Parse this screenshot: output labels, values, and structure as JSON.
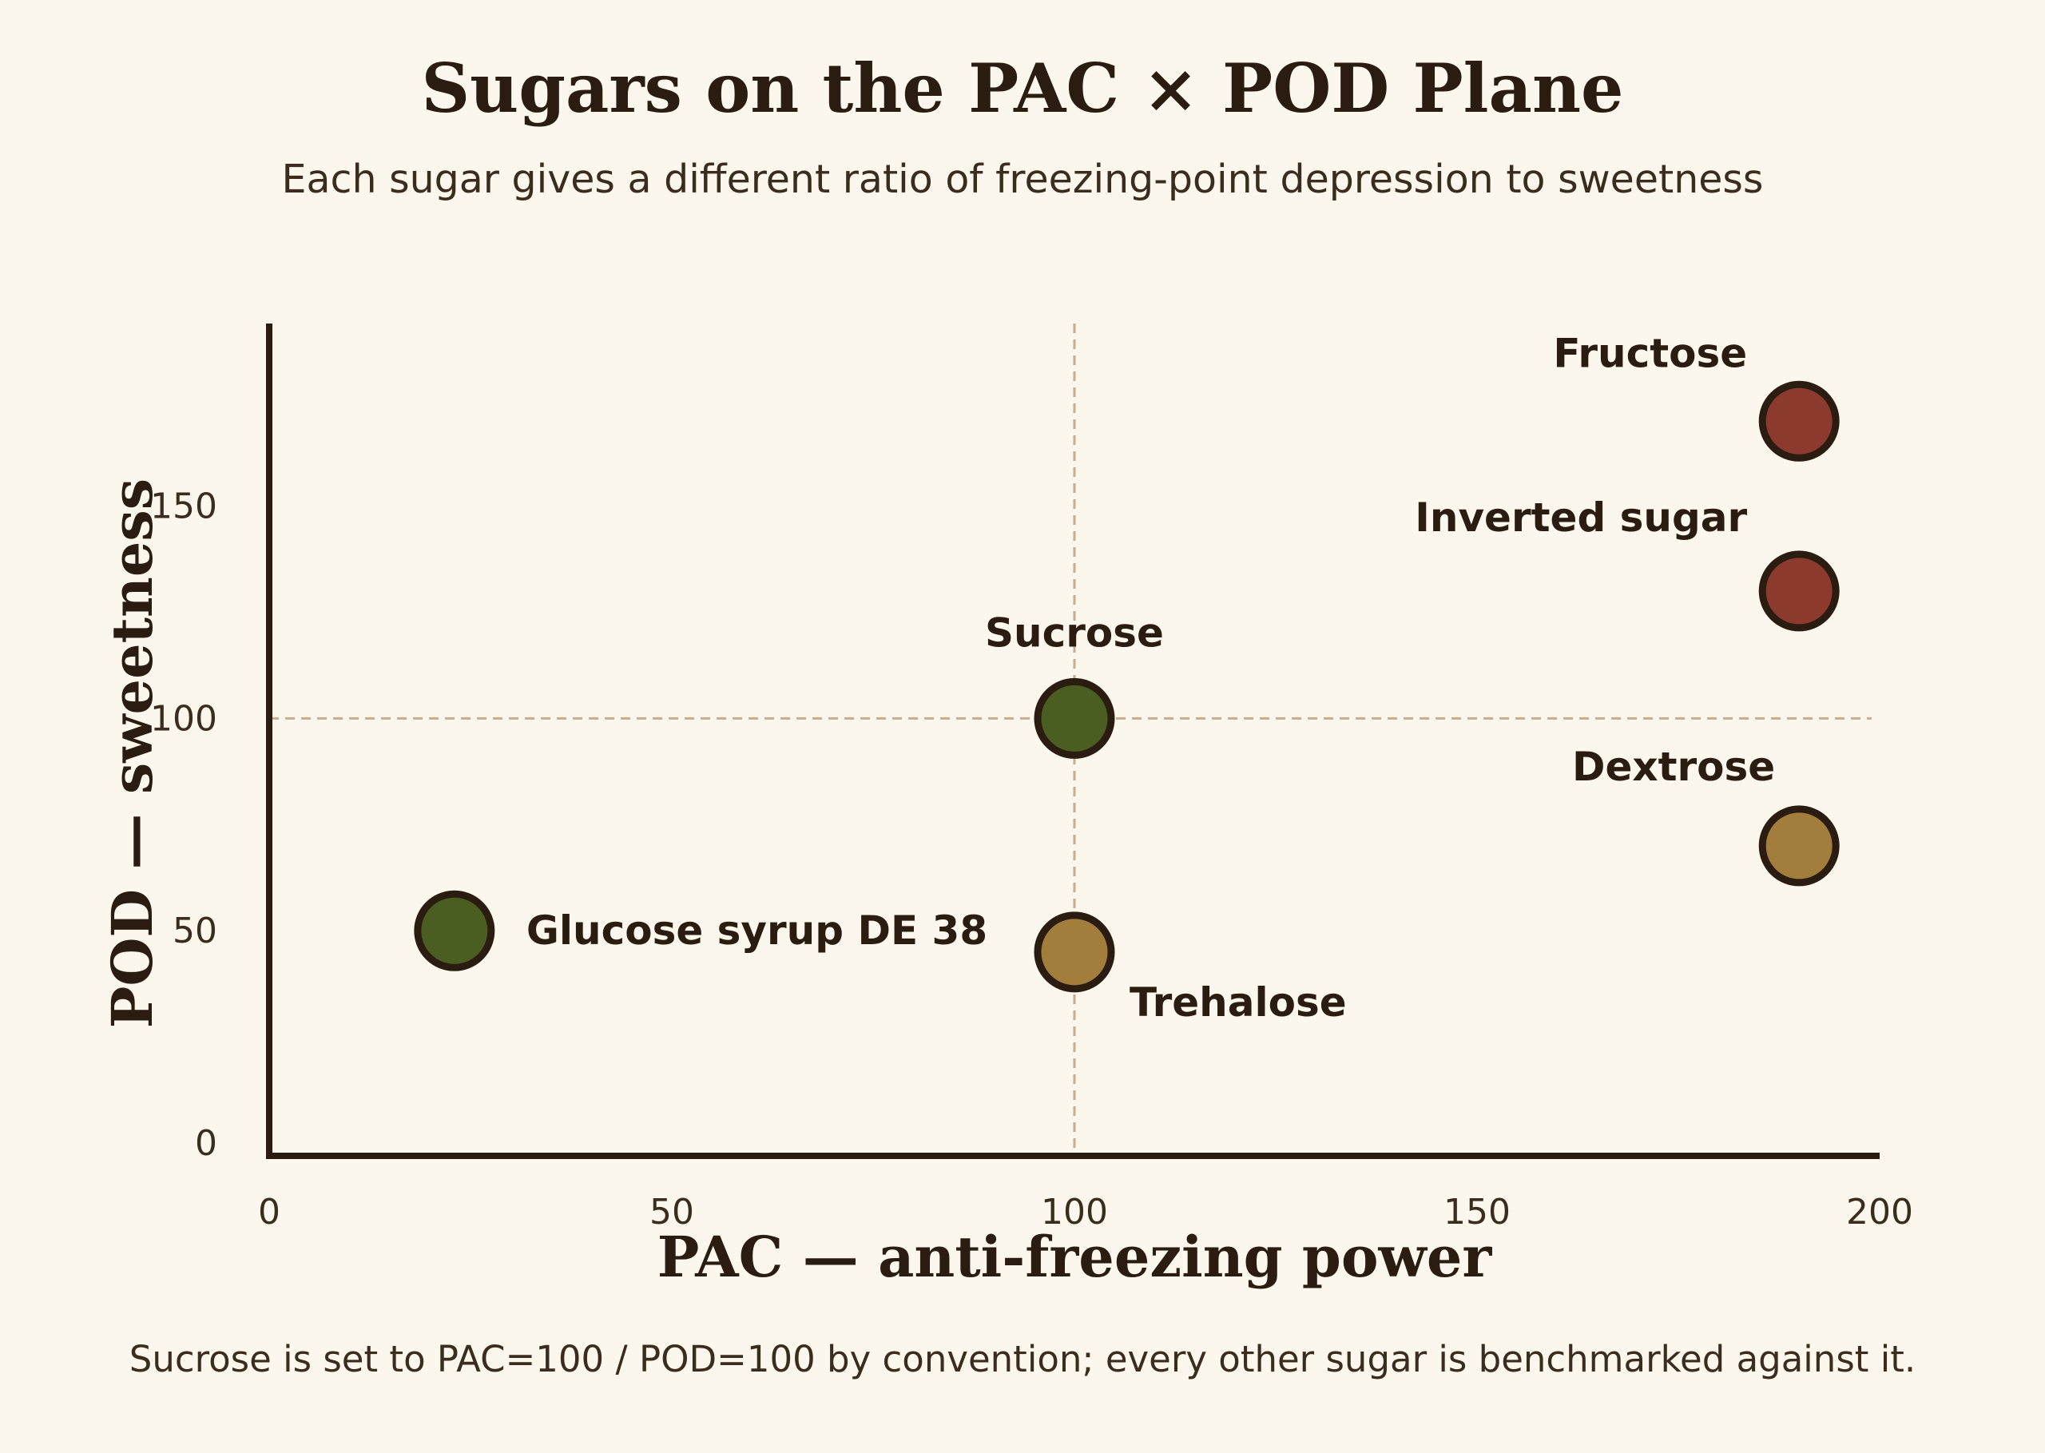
{
  "chart_data": {
    "type": "scatter",
    "title": "Sugars on the PAC × POD Plane",
    "subtitle": "Each sugar gives a different ratio of freezing-point depression to sweetness",
    "xlabel": "PAC — anti-freezing power",
    "ylabel": "POD — sweetness",
    "xlim": [
      0,
      200
    ],
    "ylim": [
      -3,
      193
    ],
    "xticks": [
      0,
      50,
      100,
      150,
      200
    ],
    "yticks": [
      0,
      50,
      100,
      150
    ],
    "xtick_labels": [
      "0",
      "50",
      "100",
      "150",
      "200"
    ],
    "ytick_labels": [
      "0",
      "50",
      "100",
      "150"
    ],
    "grid": false,
    "reference_lines": {
      "x": 100,
      "y": 100
    },
    "footnote": "Sucrose is set to PAC=100 / POD=100 by convention; every other sugar is benchmarked against it.",
    "points": [
      {
        "name": "Sucrose",
        "x": 100,
        "y": 100,
        "color": "#4A5E22"
      },
      {
        "name": "Fructose",
        "x": 190,
        "y": 170,
        "color": "#8C3A2E"
      },
      {
        "name": "Inverted sugar",
        "x": 190,
        "y": 130,
        "color": "#8C3A2E"
      },
      {
        "name": "Dextrose",
        "x": 190,
        "y": 70,
        "color": "#A37D3C"
      },
      {
        "name": "Glucose syrup DE 38",
        "x": 23,
        "y": 50,
        "color": "#4A5E22"
      },
      {
        "name": "Trehalose",
        "x": 100,
        "y": 45,
        "color": "#A37D3C"
      }
    ]
  }
}
